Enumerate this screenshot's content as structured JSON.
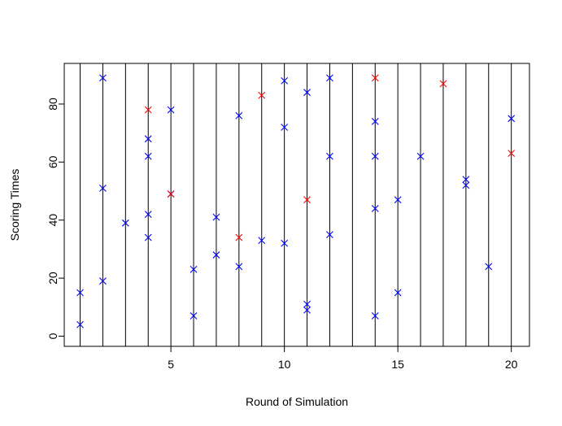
{
  "chart_data": {
    "type": "scatter",
    "title": "",
    "xlabel": "Round of Simulation",
    "ylabel": "Scoring Times",
    "xlim": [
      0.3,
      20.8
    ],
    "ylim": [
      -3.5,
      94
    ],
    "x_ticks": [
      5,
      10,
      15,
      20
    ],
    "y_ticks": [
      0,
      20,
      40,
      60,
      80
    ],
    "vertical_lines_at": [
      1,
      2,
      3,
      4,
      5,
      6,
      7,
      8,
      9,
      10,
      11,
      12,
      13,
      14,
      15,
      16,
      17,
      18,
      19,
      20
    ],
    "marker": "x",
    "colors": {
      "blue": "#0000ff",
      "red": "#ff0000",
      "lines": "#000000"
    },
    "series": [
      {
        "color": "blue",
        "points": [
          [
            1,
            15
          ],
          [
            1,
            4
          ],
          [
            2,
            89
          ],
          [
            2,
            51
          ],
          [
            2,
            19
          ],
          [
            3,
            39
          ],
          [
            4,
            68
          ],
          [
            4,
            62
          ],
          [
            4,
            42
          ],
          [
            4,
            34
          ],
          [
            5,
            78
          ],
          [
            5,
            49
          ],
          [
            6,
            23
          ],
          [
            6,
            7
          ],
          [
            7,
            41
          ],
          [
            7,
            28
          ],
          [
            8,
            76
          ],
          [
            8,
            24
          ],
          [
            9,
            33
          ],
          [
            10,
            88
          ],
          [
            10,
            72
          ],
          [
            10,
            32
          ],
          [
            11,
            84
          ],
          [
            11,
            11
          ],
          [
            11,
            9
          ],
          [
            12,
            89
          ],
          [
            12,
            62
          ],
          [
            12,
            35
          ],
          [
            14,
            74
          ],
          [
            14,
            62
          ],
          [
            14,
            44
          ],
          [
            14,
            7
          ],
          [
            15,
            47
          ],
          [
            15,
            15
          ],
          [
            16,
            62
          ],
          [
            18,
            54
          ],
          [
            18,
            52
          ],
          [
            19,
            24
          ],
          [
            20,
            75
          ]
        ]
      },
      {
        "color": "red",
        "points": [
          [
            4,
            78
          ],
          [
            5,
            49
          ],
          [
            8,
            34
          ],
          [
            9,
            83
          ],
          [
            11,
            47
          ],
          [
            14,
            89
          ],
          [
            17,
            87
          ],
          [
            20,
            63
          ]
        ]
      }
    ]
  }
}
